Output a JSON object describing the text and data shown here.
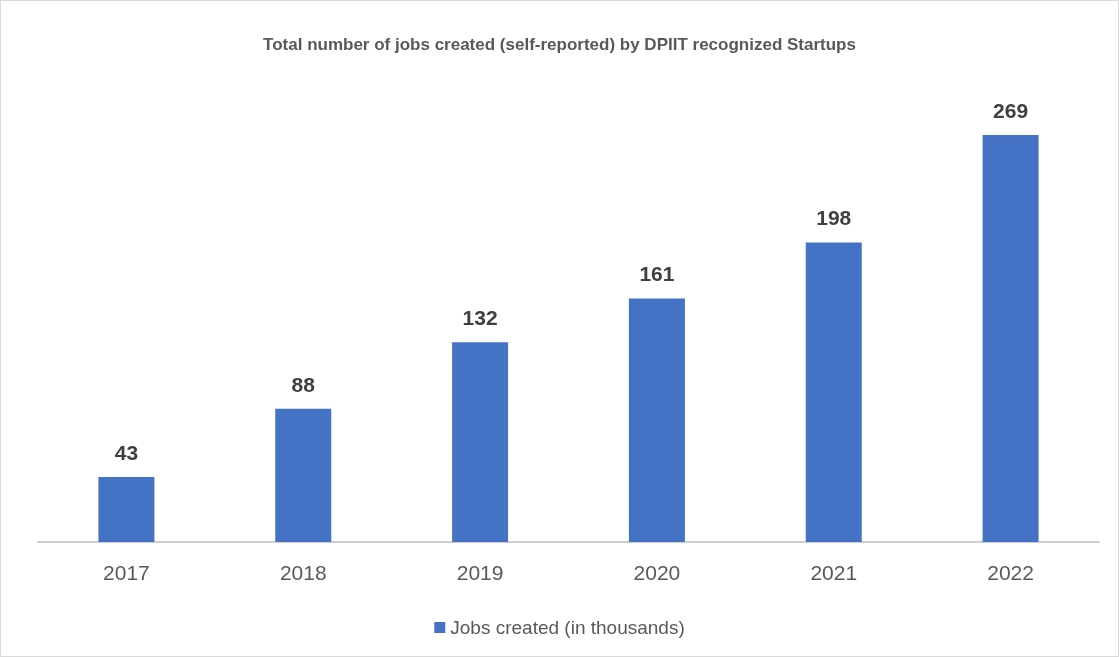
{
  "chart_data": {
    "type": "bar",
    "title": "Total number of jobs created (self-reported) by DPIIT recognized Startups",
    "categories": [
      "2017",
      "2018",
      "2019",
      "2020",
      "2021",
      "2022"
    ],
    "series": [
      {
        "name": "Jobs created (in thousands)",
        "color": "#4472c4",
        "values": [
          43,
          88,
          132,
          161,
          198,
          269
        ]
      }
    ],
    "data_labels": true,
    "grid": false,
    "legend": "bottom"
  }
}
